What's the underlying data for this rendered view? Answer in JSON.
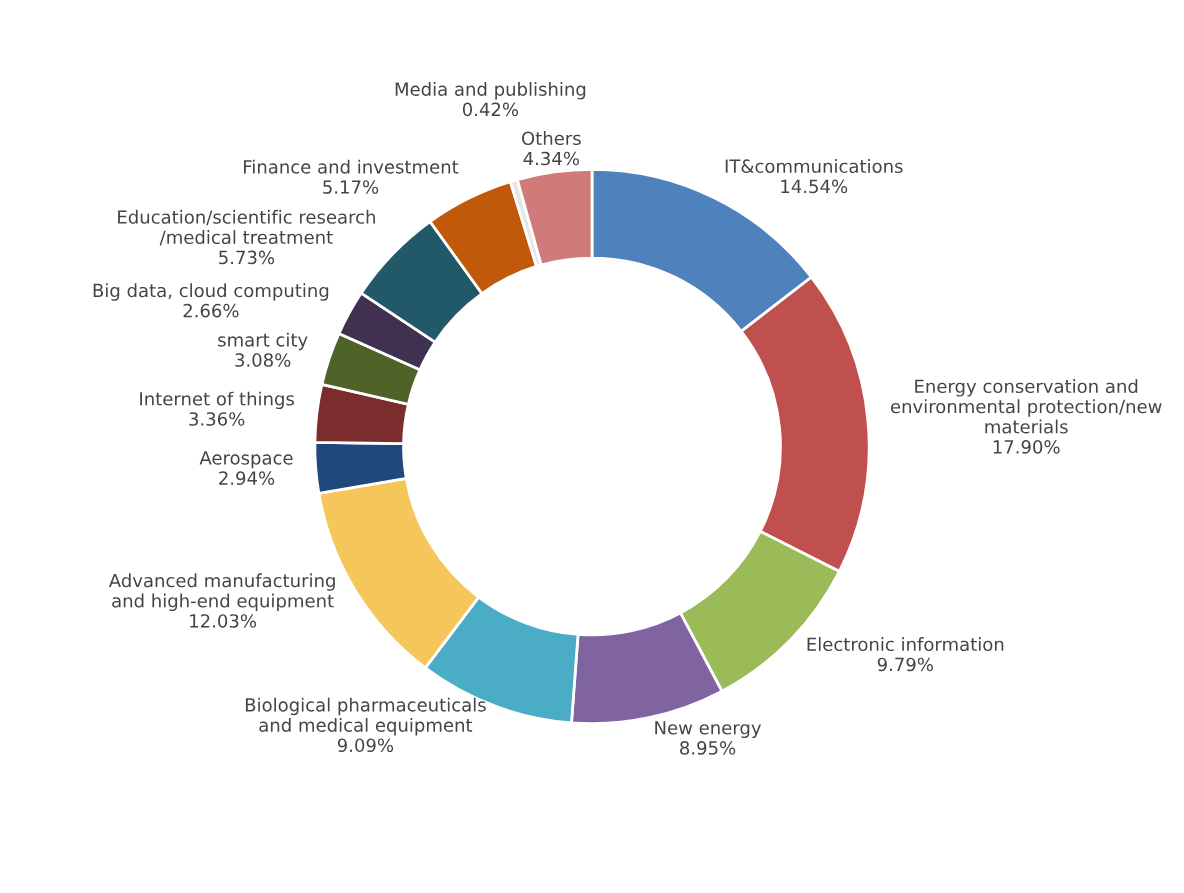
{
  "chart_data": {
    "type": "donut",
    "categories": [
      "IT&communications",
      "Energy conservation and\nenvironmental protection/new\nmaterials",
      "Electronic information",
      "New energy",
      "Biological pharmaceuticals\nand medical equipment",
      "Advanced manufacturing\nand high-end equipment",
      "Aerospace",
      "Internet of things",
      "smart city",
      "Big data, cloud computing",
      "Education/scientific research\n/medical treatment",
      "Finance and investment",
      "Media and publishing",
      "Others"
    ],
    "values": [
      14.54,
      17.9,
      9.79,
      8.95,
      9.09,
      12.03,
      2.94,
      3.36,
      3.08,
      2.66,
      5.73,
      5.17,
      0.42,
      4.34
    ],
    "value_labels": [
      "14.54%",
      "17.90%",
      "9.79%",
      "8.95%",
      "9.09%",
      "12.03%",
      "2.94%",
      "3.36%",
      "3.08%",
      "2.66%",
      "5.73%",
      "5.17%",
      "0.42%",
      "4.34%"
    ],
    "colors": [
      "#4f81bd",
      "#c0504d",
      "#9bbb59",
      "#8064a2",
      "#4bacc6",
      "#f5c75a",
      "#1f497d",
      "#7b2c2c",
      "#4f6228",
      "#403151",
      "#215968",
      "#c0590a",
      "#e6e6e6",
      "#d07a7a"
    ]
  }
}
